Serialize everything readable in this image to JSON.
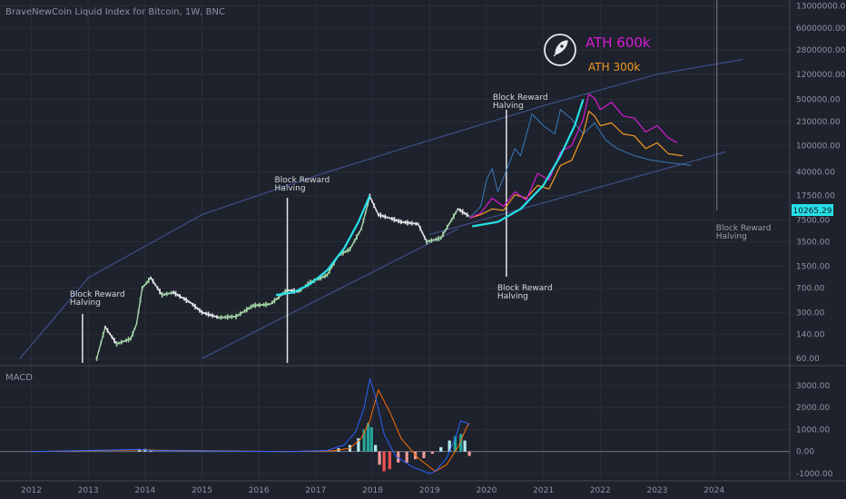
{
  "chart_data": [
    {
      "type": "line",
      "title": "BraveNewCoin Liquid Index for Bitcoin, 1W, BNC",
      "scale": "log",
      "price_label": "10265.29",
      "y_ticks": [
        "13000000.00",
        "6000000.00",
        "2800000.00",
        "1200000.00",
        "500000.00",
        "230000.00",
        "100000.00",
        "40000.00",
        "17500.00",
        "7500.00",
        "3500.00",
        "1500.00",
        "700.00",
        "300.00",
        "140.00",
        "60.00"
      ],
      "y_tick_values": [
        13000000,
        6000000,
        2800000,
        1200000,
        500000,
        230000,
        100000,
        40000,
        17500,
        7500,
        3500,
        1500,
        700,
        300,
        140,
        60
      ],
      "x_ticks": [
        "2012",
        "2013",
        "2014",
        "2015",
        "2016",
        "2017",
        "2018",
        "2019",
        "2020",
        "2021",
        "2022",
        "2023",
        "2024"
      ],
      "x_tick_values": [
        2012,
        2013,
        2014,
        2015,
        2016,
        2017,
        2018,
        2019,
        2020,
        2021,
        2022,
        2023,
        2024
      ],
      "halvings": [
        {
          "x": 2012.9,
          "label1": "Block Reward",
          "label2": "Halving"
        },
        {
          "x": 2016.5,
          "label1": "Block Reward",
          "label2": "Halving"
        },
        {
          "x": 2020.35,
          "label1": "Block Reward",
          "label2": "Halving"
        },
        {
          "x": 2024.05,
          "label1": "Block Reward",
          "label2": "Halving"
        }
      ],
      "annotations": {
        "ath_600k": "ATH 600k",
        "ath_300k": "ATH 300k"
      },
      "colors": {
        "price_up": "#a5d6a7",
        "price_down": "#e8eaed",
        "curve": "#26e1e8",
        "projection_600k": "#d81bd3",
        "projection_300k": "#f59a23",
        "projection_blue": "#3a7ab8",
        "channel": "#3e4f86",
        "halving_line": "#e6e6e6",
        "label_bg": "#26e1e8"
      },
      "series": [
        {
          "name": "price",
          "x": [
            2013.15,
            2013.3,
            2013.5,
            2013.75,
            2013.85,
            2013.95,
            2014.1,
            2014.3,
            2014.5,
            2014.8,
            2015.0,
            2015.3,
            2015.6,
            2015.9,
            2016.2,
            2016.5,
            2016.7,
            2016.9,
            2017.2,
            2017.4,
            2017.6,
            2017.8,
            2017.95,
            2018.1,
            2018.3,
            2018.5,
            2018.8,
            2018.95,
            2019.2,
            2019.5,
            2019.7
          ],
          "y": [
            60,
            180,
            100,
            120,
            200,
            700,
            1000,
            550,
            600,
            420,
            300,
            250,
            260,
            380,
            400,
            650,
            620,
            850,
            1100,
            2200,
            2700,
            5500,
            17000,
            9000,
            8000,
            7000,
            6500,
            3500,
            4000,
            11000,
            8500
          ]
        },
        {
          "name": "proj-600k",
          "x": [
            2019.7,
            2019.9,
            2020.1,
            2020.3,
            2020.5,
            2020.7,
            2020.9,
            2021.1,
            2021.3,
            2021.5,
            2021.7,
            2021.8,
            2021.9,
            2022.0,
            2022.2,
            2022.4,
            2022.6,
            2022.8,
            2023.0,
            2023.2,
            2023.35
          ],
          "y": [
            8000,
            9500,
            16000,
            12000,
            20000,
            15000,
            38000,
            30000,
            80000,
            100000,
            250000,
            600000,
            520000,
            350000,
            450000,
            280000,
            260000,
            160000,
            200000,
            130000,
            110000
          ]
        },
        {
          "name": "proj-300k",
          "x": [
            2019.7,
            2019.9,
            2020.1,
            2020.3,
            2020.5,
            2020.7,
            2020.9,
            2021.1,
            2021.3,
            2021.5,
            2021.7,
            2021.8,
            2021.9,
            2022.0,
            2022.2,
            2022.4,
            2022.6,
            2022.8,
            2023.0,
            2023.2,
            2023.45
          ],
          "y": [
            8000,
            9000,
            11000,
            10500,
            18000,
            16000,
            25000,
            22000,
            50000,
            60000,
            150000,
            330000,
            280000,
            200000,
            220000,
            150000,
            140000,
            90000,
            110000,
            75000,
            70000
          ]
        },
        {
          "name": "proj-blue",
          "x": [
            2019.7,
            2019.9,
            2020.0,
            2020.1,
            2020.2,
            2020.5,
            2020.6,
            2020.8,
            2021.0,
            2021.2,
            2021.3,
            2021.5,
            2021.7,
            2021.9,
            2022.1,
            2022.3,
            2022.6,
            2022.9,
            2023.2,
            2023.6
          ],
          "y": [
            8000,
            12000,
            30000,
            45000,
            20000,
            90000,
            70000,
            300000,
            200000,
            150000,
            350000,
            250000,
            150000,
            220000,
            120000,
            90000,
            70000,
            60000,
            55000,
            50000
          ]
        },
        {
          "name": "curve-1",
          "x": [
            2016.3,
            2016.6,
            2016.9,
            2017.2,
            2017.5,
            2017.75,
            2017.95
          ],
          "y": [
            550,
            600,
            800,
            1300,
            2800,
            7000,
            17500
          ]
        },
        {
          "name": "curve-2",
          "x": [
            2019.75,
            2020.2,
            2020.6,
            2021.0,
            2021.3,
            2021.55,
            2021.7
          ],
          "y": [
            6000,
            7000,
            11000,
            25000,
            70000,
            200000,
            500000
          ]
        }
      ],
      "channel": {
        "upper_x": [
          2011.8,
          2013,
          2015,
          2017,
          2019,
          2021,
          2023,
          2024.5
        ],
        "upper_y": [
          60,
          1000,
          9000,
          35000,
          120000,
          400000,
          1200000,
          2000000
        ],
        "lower1_x": [
          2015.0,
          2019.5
        ],
        "lower1_y": [
          60,
          5500
        ],
        "lower2_x": [
          2019.0,
          2024.2
        ],
        "lower2_y": [
          4500,
          80000
        ]
      }
    },
    {
      "type": "bar",
      "title": "MACD",
      "y_ticks": [
        "3000.00",
        "2000.00",
        "1000.00",
        "0.00",
        "-1000.00"
      ],
      "y_tick_values": [
        3000,
        2000,
        1000,
        0,
        -1000
      ],
      "colors": {
        "hist_pos": "#b2ebf2",
        "hist_pos_strong": "#26a69a",
        "hist_neg": "#ef9a9a",
        "hist_neg_strong": "#ef5350",
        "macd": "#2962ff",
        "signal": "#ff6d00"
      },
      "histogram": {
        "x": [
          2013.9,
          2014.0,
          2014.1,
          2017.4,
          2017.6,
          2017.75,
          2017.85,
          2017.92,
          2017.98,
          2018.05,
          2018.12,
          2018.2,
          2018.3,
          2018.45,
          2018.6,
          2018.75,
          2018.9,
          2019.05,
          2019.2,
          2019.35,
          2019.45,
          2019.55,
          2019.62,
          2019.7
        ],
        "values": [
          100,
          120,
          80,
          150,
          300,
          600,
          1000,
          1300,
          1100,
          300,
          -600,
          -900,
          -800,
          -500,
          -500,
          -350,
          -300,
          -100,
          200,
          500,
          700,
          800,
          500,
          -200
        ]
      },
      "macd": {
        "x": [
          2012,
          2013.9,
          2014.1,
          2016.5,
          2017.2,
          2017.5,
          2017.7,
          2017.85,
          2017.95,
          2018.05,
          2018.2,
          2018.4,
          2018.7,
          2019.0,
          2019.1,
          2019.3,
          2019.45,
          2019.55,
          2019.65,
          2019.7
        ],
        "y": [
          0,
          100,
          50,
          0,
          50,
          300,
          900,
          2000,
          3300,
          2500,
          800,
          -200,
          -700,
          -1000,
          -900,
          -300,
          600,
          1400,
          1300,
          1200
        ]
      },
      "signal": {
        "x": [
          2012,
          2014.0,
          2014.2,
          2016.5,
          2017.3,
          2017.6,
          2017.8,
          2017.95,
          2018.1,
          2018.3,
          2018.5,
          2018.8,
          2019.1,
          2019.3,
          2019.5,
          2019.65,
          2019.7
        ],
        "y": [
          0,
          80,
          60,
          0,
          40,
          150,
          600,
          1400,
          2800,
          1800,
          600,
          -300,
          -900,
          -600,
          200,
          1100,
          1300
        ]
      }
    }
  ]
}
